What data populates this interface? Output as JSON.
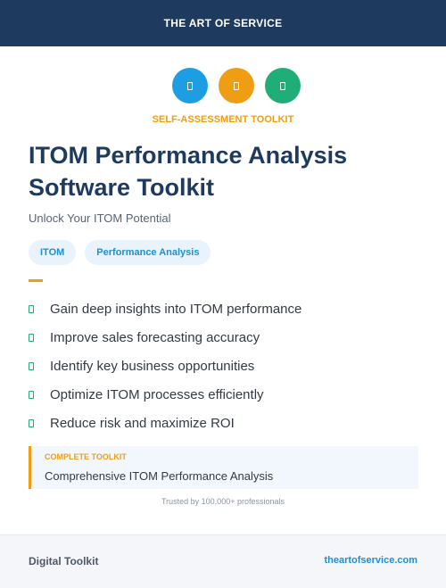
{
  "header": {
    "brand": "THE ART OF SERVICE"
  },
  "icons": [
    {
      "name": "icon-placeholder",
      "color": "#1d9ee3"
    },
    {
      "name": "icon-placeholder",
      "color": "#ef9d12"
    },
    {
      "name": "icon-placeholder",
      "color": "#20ae78"
    }
  ],
  "hero": {
    "kicker": "SELF-ASSESSMENT TOOLKIT",
    "title": "ITOM Performance Analysis Software Toolkit",
    "subtitle": "Unlock Your ITOM Potential",
    "tags": [
      "ITOM",
      "Performance Analysis"
    ]
  },
  "features": [
    "Gain deep insights into ITOM performance",
    "Improve sales forecasting accuracy",
    "Identify key business opportunities",
    "Optimize ITOM processes efficiently",
    "Reduce risk and maximize ROI"
  ],
  "callout": {
    "kicker": "COMPLETE TOOLKIT",
    "text": "Comprehensive ITOM Performance Analysis"
  },
  "trusted": "Trusted by 100,000+ professionals",
  "footer": {
    "left": "Digital Toolkit",
    "right": "theartofservice.com"
  },
  "colors": {
    "navy": "#1e3b5f",
    "orange": "#ef9d12",
    "blue": "#1c8fd6",
    "green": "#1fae73"
  }
}
